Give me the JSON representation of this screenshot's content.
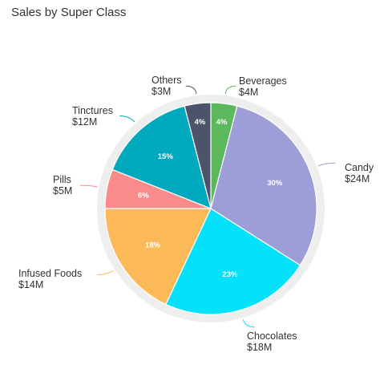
{
  "title": "Sales by Super Class",
  "chart_data": {
    "type": "pie",
    "title": "Sales by Super Class",
    "slices": [
      {
        "name": "Beverages",
        "value_label": "$4M",
        "percent": 4,
        "color": "#5cb85c"
      },
      {
        "name": "Candy",
        "value_label": "$24M",
        "percent": 30,
        "color": "#9d9dd8"
      },
      {
        "name": "Chocolates",
        "value_label": "$18M",
        "percent": 23,
        "color": "#05e0fb"
      },
      {
        "name": "Infused Foods",
        "value_label": "$14M",
        "percent": 18,
        "color": "#fbb957"
      },
      {
        "name": "Pills",
        "value_label": "$5M",
        "percent": 6,
        "color": "#fb8a8a"
      },
      {
        "name": "Tinctures",
        "value_label": "$12M",
        "percent": 15,
        "color": "#00a9bd"
      },
      {
        "name": "Others",
        "value_label": "$3M",
        "percent": 4,
        "color": "#4b5468"
      }
    ]
  }
}
